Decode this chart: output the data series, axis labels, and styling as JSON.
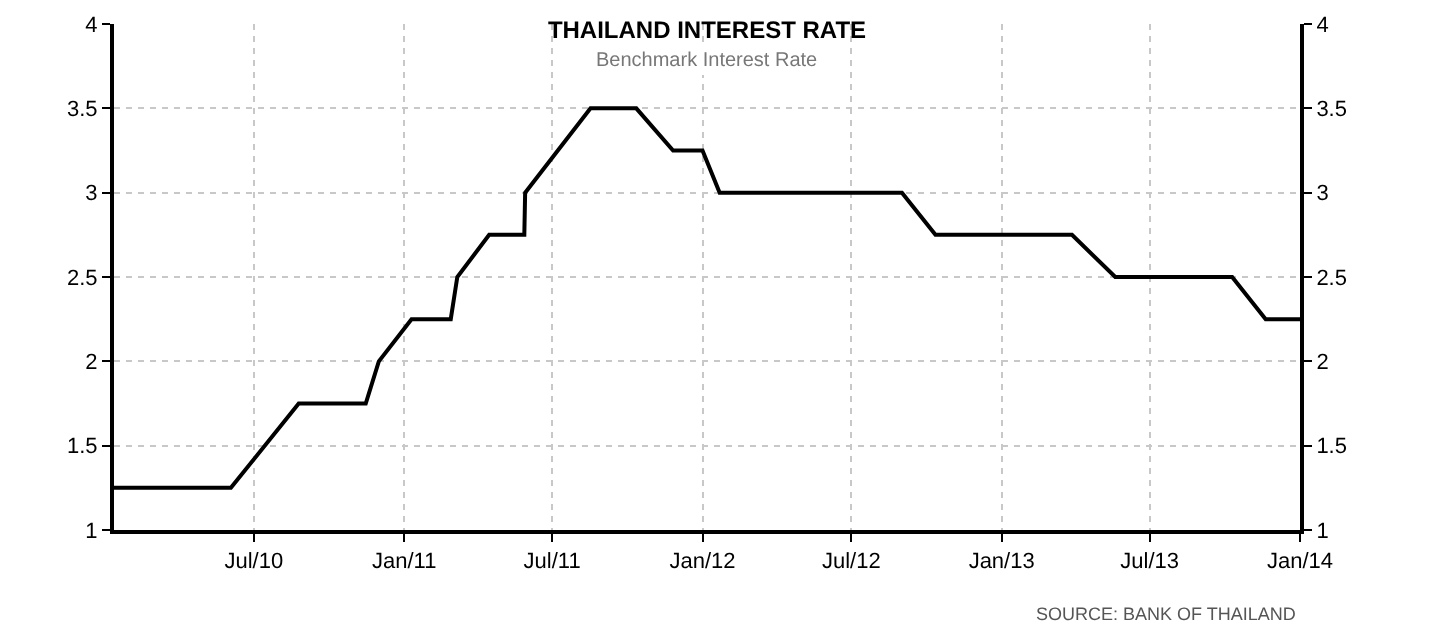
{
  "chart_data": {
    "type": "line",
    "title": "THAILAND INTEREST RATE",
    "subtitle": "Benchmark Interest Rate",
    "annotations": [
      "SOURCE: BANK OF THAILAND"
    ],
    "x": [
      "2010-01-11",
      "2010-06-03",
      "2010-08-25",
      "2010-11-15",
      "2010-12-01",
      "2011-01-10",
      "2011-02-27",
      "2011-03-07",
      "2011-04-15",
      "2011-05-28",
      "2011-05-29",
      "2011-08-17",
      "2011-10-12",
      "2011-11-26",
      "2012-01-01",
      "2012-01-22",
      "2012-09-01",
      "2012-10-12",
      "2013-03-28",
      "2013-05-20",
      "2013-10-10",
      "2013-11-20",
      "2014-01-01"
    ],
    "series": [
      {
        "color": "#000000",
        "values": [
          1.25,
          1.25,
          1.75,
          1.75,
          2.0,
          2.25,
          2.25,
          2.5,
          2.75,
          2.75,
          3.0,
          3.5,
          3.5,
          3.25,
          3.25,
          3.0,
          3.0,
          2.75,
          2.75,
          2.5,
          2.5,
          2.25,
          2.25
        ]
      }
    ],
    "xlim": [
      "2010-01-11",
      "2014-01-01"
    ],
    "xticks": [
      {
        "value": "2010-07-01",
        "label": "Jul/10"
      },
      {
        "value": "2011-01-01",
        "label": "Jan/11"
      },
      {
        "value": "2011-07-01",
        "label": "Jul/11"
      },
      {
        "value": "2012-01-01",
        "label": "Jan/12"
      },
      {
        "value": "2012-07-01",
        "label": "Jul/12"
      },
      {
        "value": "2013-01-01",
        "label": "Jan/13"
      },
      {
        "value": "2013-07-01",
        "label": "Jul/13"
      },
      {
        "value": "2014-01-01",
        "label": "Jan/14"
      }
    ],
    "ylim": [
      1,
      4
    ],
    "yticks": [
      1,
      1.5,
      2,
      2.5,
      3,
      3.5,
      4
    ],
    "y2lim": [
      1,
      4
    ],
    "y2ticks": [
      1,
      1.5,
      2,
      2.5,
      3,
      3.5,
      4
    ],
    "grid": true,
    "line_style": "solid"
  }
}
